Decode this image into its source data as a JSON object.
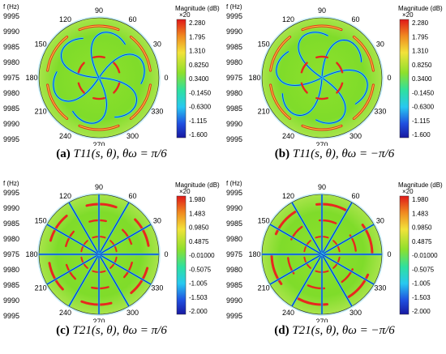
{
  "panels": [
    {
      "id": "a",
      "caption": {
        "label": "(a)",
        "expr": "T11(s, θ), θω = π/6"
      },
      "yaxis_label": "f (Hz)",
      "y_ticks": [
        "9995",
        "9990",
        "9985",
        "9980",
        "9975",
        "9980",
        "9985",
        "9990",
        "9995"
      ],
      "angle_ticks": [
        "90",
        "60",
        "30",
        "0",
        "330",
        "300",
        "270",
        "240",
        "210",
        "180",
        "150",
        "120"
      ],
      "colorbar": {
        "title": "Magnitude (dB)",
        "multiplier": "×20",
        "ticks": [
          "2.280",
          "1.795",
          "1.310",
          "0.8250",
          "0.3400",
          "-0.1450",
          "-0.6300",
          "-1.115",
          "-1.600"
        ]
      },
      "pattern": "T11",
      "sign": 1
    },
    {
      "id": "b",
      "caption": {
        "label": "(b)",
        "expr": "T11(s, θ), θω = −π/6"
      },
      "yaxis_label": "f (Hz)",
      "y_ticks": [
        "9995",
        "9990",
        "9985",
        "9980",
        "9975",
        "9980",
        "9985",
        "9990",
        "9995"
      ],
      "angle_ticks": [
        "90",
        "60",
        "30",
        "0",
        "330",
        "300",
        "270",
        "240",
        "210",
        "180",
        "150",
        "120"
      ],
      "colorbar": {
        "title": "Magnitude (dB)",
        "multiplier": "×20",
        "ticks": [
          "2.280",
          "1.795",
          "1.310",
          "0.8250",
          "0.3400",
          "-0.1450",
          "-0.6300",
          "-1.115",
          "-1.600"
        ]
      },
      "pattern": "T11",
      "sign": -1
    },
    {
      "id": "c",
      "caption": {
        "label": "(c)",
        "expr": "T21(s, θ), θω = π/6"
      },
      "yaxis_label": "f (Hz)",
      "y_ticks": [
        "9995",
        "9990",
        "9985",
        "9980",
        "9975",
        "9980",
        "9985",
        "9990",
        "9995"
      ],
      "angle_ticks": [
        "90",
        "60",
        "30",
        "0",
        "330",
        "300",
        "270",
        "240",
        "210",
        "180",
        "150",
        "120"
      ],
      "colorbar": {
        "title": "Magnitude (dB)",
        "multiplier": "×20",
        "ticks": [
          "1.980",
          "1.483",
          "0.9850",
          "0.4875",
          "-0.01000",
          "-0.5075",
          "-1.005",
          "-1.503",
          "-2.000"
        ]
      },
      "pattern": "T21",
      "sign": 1
    },
    {
      "id": "d",
      "caption": {
        "label": "(d)",
        "expr": "T21(s, θ), θω = −π/6"
      },
      "yaxis_label": "f (Hz)",
      "y_ticks": [
        "9995",
        "9990",
        "9985",
        "9980",
        "9975",
        "9980",
        "9985",
        "9990",
        "9995"
      ],
      "angle_ticks": [
        "90",
        "60",
        "30",
        "0",
        "330",
        "300",
        "270",
        "240",
        "210",
        "180",
        "150",
        "120"
      ],
      "colorbar": {
        "title": "Magnitude (dB)",
        "multiplier": "×20",
        "ticks": [
          "1.980",
          "1.483",
          "0.9850",
          "0.4875",
          "-0.01000",
          "-0.5075",
          "-1.005",
          "-1.503",
          "-2.000"
        ]
      },
      "pattern": "T21",
      "sign": -1
    }
  ],
  "colors": {
    "field": "#7fdc2a",
    "ring_red": "#e8281e",
    "line_blue": "#1030c8",
    "cyan": "#34d6e8",
    "yellow": "#f2e23a"
  }
}
